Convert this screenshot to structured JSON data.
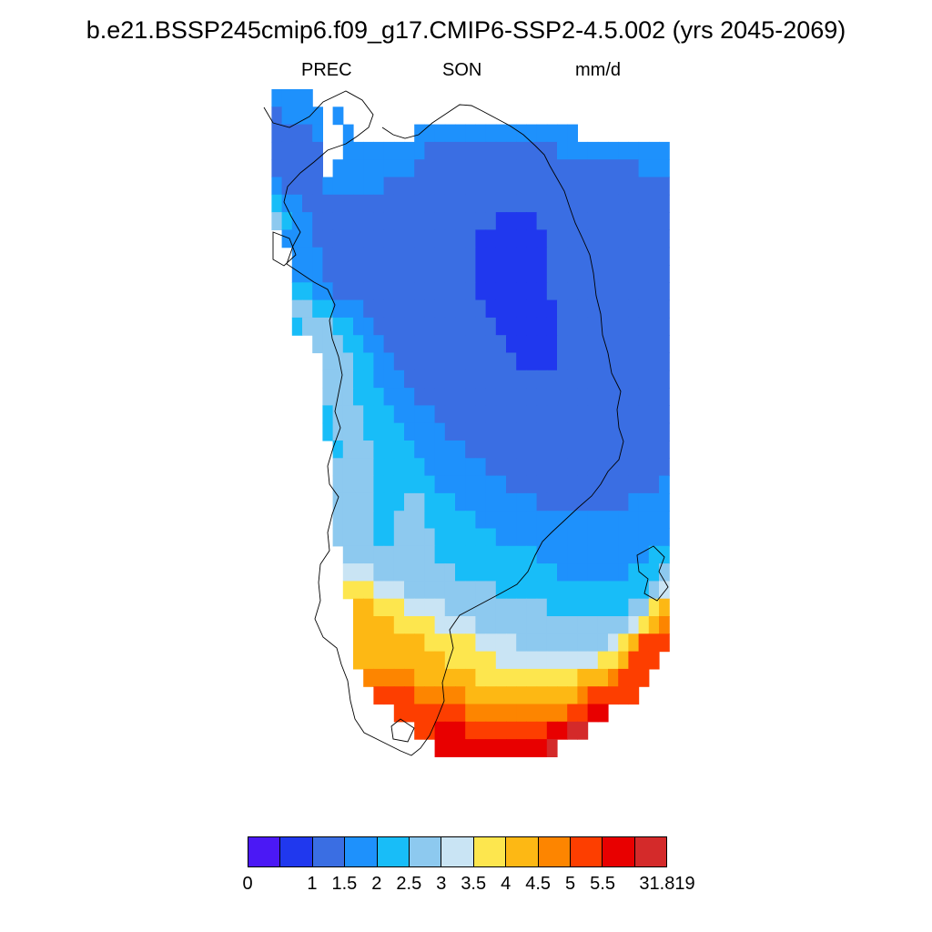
{
  "title": "b.e21.BSSP245cmip6.f09_g17.CMIP6-SSP2-4.5.002 (yrs 2045-2069)",
  "subtitle": {
    "variable": "PREC",
    "season": "SON",
    "units": "mm/d"
  },
  "colorbar": {
    "colors": [
      "#4b18f5",
      "#2038ee",
      "#3a6ee3",
      "#1e91fc",
      "#18bdf8",
      "#8dc9ef",
      "#c9e4f4",
      "#fde64e",
      "#fdb814",
      "#fd8500",
      "#fd3e00",
      "#e80000",
      "#d42a2a"
    ],
    "labels": [
      "0",
      "1",
      "1.5",
      "2",
      "2.5",
      "3",
      "3.5",
      "4",
      "4.5",
      "5",
      "5.5",
      "31.819"
    ]
  },
  "chart_data": {
    "type": "heatmap",
    "title": "b.e21.BSSP245cmip6.f09_g17.CMIP6-SSP2-4.5.002 (yrs 2045-2069)",
    "variable": "PREC",
    "season": "SON",
    "units": "mm/d",
    "region": "Greenland",
    "levels": [
      0,
      1,
      1.5,
      2,
      2.5,
      3,
      3.5,
      4,
      4.5,
      5,
      5.5,
      31.819
    ],
    "grid_note": "cell values are color-bin indices (0 = lowest bin, 12 = highest); rows run north to south",
    "grid": [
      "..2222.........................................................",
      "..12222.2.........................................................",
      "..11112..2......2222222222222222......................................",
      "..11111..22222222111111111111122222222222...................................",
      "..11111.222222221111111111111111111111222224....................................",
      "..211112222221111111111111111111111111111122224.................................",
      "..3221111111111111111111111111111111111111112224................................",
      "..4322111111111111111111000011111111111111112224................................",
      "...2221111111111111111000000011111111111111112224...............................",
      "....22211111111111111100000001111111111111111223................................",
      "....2221111111111111110000000111111111111111112234..............................",
      "....332211111111111111000000011111111111111112224..............................",
      "....44332221111111111110000000111111111111111112234.............................",
      "....344433221111111111110000001111111111111111112234............................",
      "......44433221111111111110000011111111111111111122234...........................",
      ".......4443322111111111111000011111111111111111112224...........................",
      ".......4443322211111111111111111111111111111111122224...........................",
      ".......44433322211111111111111111111111111111111222244..........................",
      ".......344433322221111111111111111111111111111112222345.........................",
      ".......34443333222211111111111111111111111111112222456.........................",
      "........3444333322222111111111111111111111111222223455.........................",
      "........44443333322222211111111111111111111222222345655........................",
      "........444433333322222221111111111111112222222345677..........................",
      "........444433344333222222221111111112222222223456777..........................",
      "........4444334443333322222222222222222222224456777........7777.................",
      "........44443344443333332222222222222222222456777.........77777.................",
      ".........4444444443333333333222222222223334567788.........777778................",
      ".........555444444443333333333222222233345677899...........7777889..............",
      ".........666555444444444333333333333333456779999...........77777889.............",
      "..........77666555544444444443333333344678999..............7777788..............",
      "..........7777666655554444444444444445678999...............777778...............",
      "..........77777776666655554444444445679999......................................",
      "..........777777777666665555555555667999........................................",
      "...........8888877777766666666667778999.........................................",
      "............99998888877777777777899999..........................................",
      "..............9999999888888888899AA.............................................",
      "................99AAA99999999AABB...............................................",
      "..................AAAAAAAAAAAB..................................................",
      "......................BBBB......................................................"
    ]
  }
}
